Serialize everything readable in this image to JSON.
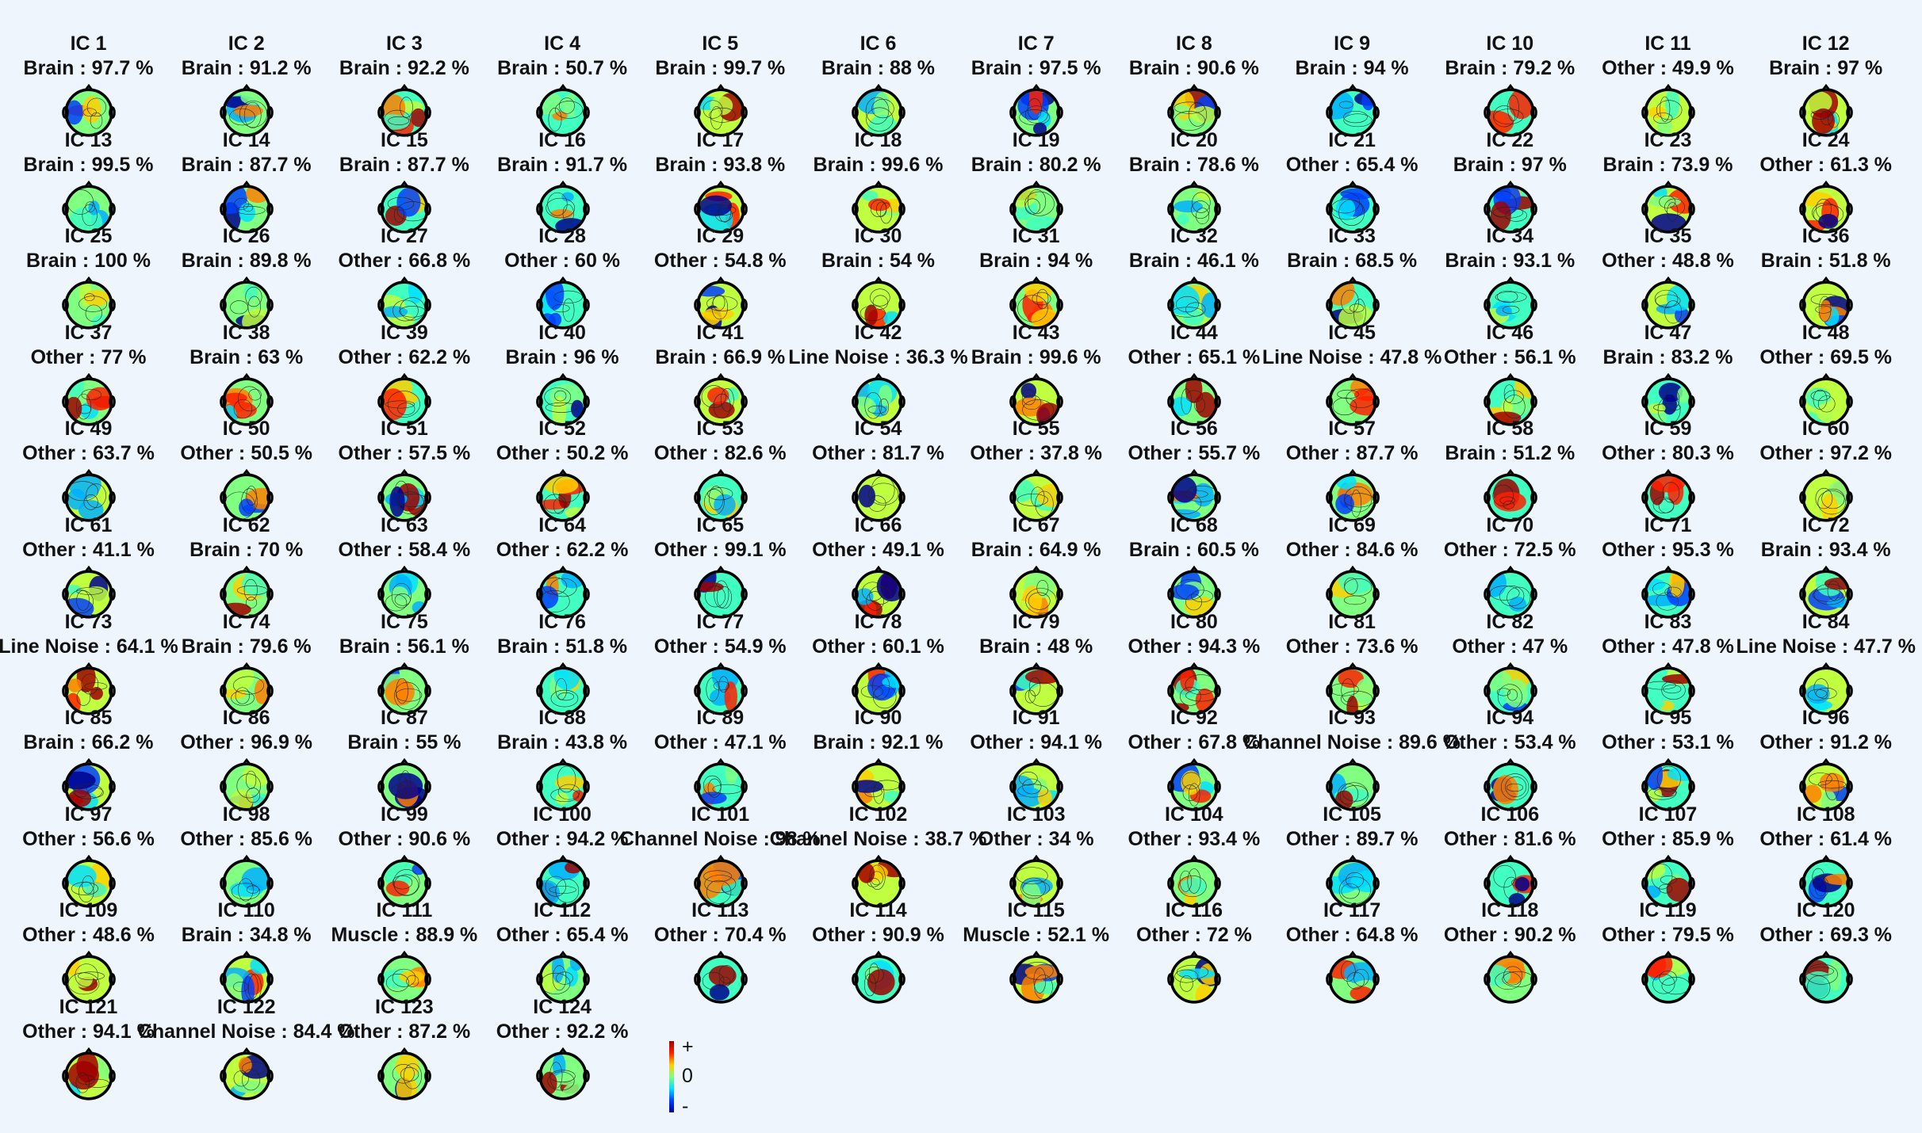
{
  "components": [
    {
      "title": "IC 1",
      "label": "Brain : 97.7 %"
    },
    {
      "title": "IC 2",
      "label": "Brain : 91.2 %"
    },
    {
      "title": "IC 3",
      "label": "Brain : 92.2 %"
    },
    {
      "title": "IC 4",
      "label": "Brain : 50.7 %"
    },
    {
      "title": "IC 5",
      "label": "Brain : 99.7 %"
    },
    {
      "title": "IC 6",
      "label": "Brain : 88 %"
    },
    {
      "title": "IC 7",
      "label": "Brain : 97.5 %"
    },
    {
      "title": "IC 8",
      "label": "Brain : 90.6 %"
    },
    {
      "title": "IC 9",
      "label": "Brain : 94 %"
    },
    {
      "title": "IC 10",
      "label": "Brain : 79.2 %"
    },
    {
      "title": "IC 11",
      "label": "Other : 49.9 %"
    },
    {
      "title": "IC 12",
      "label": "Brain : 97 %"
    },
    {
      "title": "IC 13",
      "label": "Brain : 99.5 %"
    },
    {
      "title": "IC 14",
      "label": "Brain : 87.7 %"
    },
    {
      "title": "IC 15",
      "label": "Brain : 87.7 %"
    },
    {
      "title": "IC 16",
      "label": "Brain : 91.7 %"
    },
    {
      "title": "IC 17",
      "label": "Brain : 93.8 %"
    },
    {
      "title": "IC 18",
      "label": "Brain : 99.6 %"
    },
    {
      "title": "IC 19",
      "label": "Brain : 80.2 %"
    },
    {
      "title": "IC 20",
      "label": "Brain : 78.6 %"
    },
    {
      "title": "IC 21",
      "label": "Other : 65.4 %"
    },
    {
      "title": "IC 22",
      "label": "Brain : 97 %"
    },
    {
      "title": "IC 23",
      "label": "Brain : 73.9 %"
    },
    {
      "title": "IC 24",
      "label": "Other : 61.3 %"
    },
    {
      "title": "IC 25",
      "label": "Brain : 100 %"
    },
    {
      "title": "IC 26",
      "label": "Brain : 89.8 %"
    },
    {
      "title": "IC 27",
      "label": "Other : 66.8 %"
    },
    {
      "title": "IC 28",
      "label": "Other : 60 %"
    },
    {
      "title": "IC 29",
      "label": "Other : 54.8 %"
    },
    {
      "title": "IC 30",
      "label": "Brain : 54 %"
    },
    {
      "title": "IC 31",
      "label": "Brain : 94 %"
    },
    {
      "title": "IC 32",
      "label": "Brain : 46.1 %"
    },
    {
      "title": "IC 33",
      "label": "Brain : 68.5 %"
    },
    {
      "title": "IC 34",
      "label": "Brain : 93.1 %"
    },
    {
      "title": "IC 35",
      "label": "Other : 48.8 %"
    },
    {
      "title": "IC 36",
      "label": "Brain : 51.8 %"
    },
    {
      "title": "IC 37",
      "label": "Other : 77 %"
    },
    {
      "title": "IC 38",
      "label": "Brain : 63 %"
    },
    {
      "title": "IC 39",
      "label": "Other : 62.2 %"
    },
    {
      "title": "IC 40",
      "label": "Brain : 96 %"
    },
    {
      "title": "IC 41",
      "label": "Brain : 66.9 %"
    },
    {
      "title": "IC 42",
      "label": "Line Noise : 36.3 %"
    },
    {
      "title": "IC 43",
      "label": "Brain : 99.6 %"
    },
    {
      "title": "IC 44",
      "label": "Other : 65.1 %"
    },
    {
      "title": "IC 45",
      "label": "Line Noise : 47.8 %"
    },
    {
      "title": "IC 46",
      "label": "Other : 56.1 %"
    },
    {
      "title": "IC 47",
      "label": "Brain : 83.2 %"
    },
    {
      "title": "IC 48",
      "label": "Other : 69.5 %"
    },
    {
      "title": "IC 49",
      "label": "Other : 63.7 %"
    },
    {
      "title": "IC 50",
      "label": "Other : 50.5 %"
    },
    {
      "title": "IC 51",
      "label": "Other : 57.5 %"
    },
    {
      "title": "IC 52",
      "label": "Other : 50.2 %"
    },
    {
      "title": "IC 53",
      "label": "Other : 82.6 %"
    },
    {
      "title": "IC 54",
      "label": "Other : 81.7 %"
    },
    {
      "title": "IC 55",
      "label": "Other : 37.8 %"
    },
    {
      "title": "IC 56",
      "label": "Other : 55.7 %"
    },
    {
      "title": "IC 57",
      "label": "Other : 87.7 %"
    },
    {
      "title": "IC 58",
      "label": "Brain : 51.2 %"
    },
    {
      "title": "IC 59",
      "label": "Other : 80.3 %"
    },
    {
      "title": "IC 60",
      "label": "Other : 97.2 %"
    },
    {
      "title": "IC 61",
      "label": "Other : 41.1 %"
    },
    {
      "title": "IC 62",
      "label": "Brain : 70 %"
    },
    {
      "title": "IC 63",
      "label": "Other : 58.4 %"
    },
    {
      "title": "IC 64",
      "label": "Other : 62.2 %"
    },
    {
      "title": "IC 65",
      "label": "Other : 99.1 %"
    },
    {
      "title": "IC 66",
      "label": "Other : 49.1 %"
    },
    {
      "title": "IC 67",
      "label": "Brain : 64.9 %"
    },
    {
      "title": "IC 68",
      "label": "Brain : 60.5 %"
    },
    {
      "title": "IC 69",
      "label": "Other : 84.6 %"
    },
    {
      "title": "IC 70",
      "label": "Other : 72.5 %"
    },
    {
      "title": "IC 71",
      "label": "Other : 95.3 %"
    },
    {
      "title": "IC 72",
      "label": "Brain : 93.4 %"
    },
    {
      "title": "IC 73",
      "label": "Line Noise : 64.1 %"
    },
    {
      "title": "IC 74",
      "label": "Brain : 79.6 %"
    },
    {
      "title": "IC 75",
      "label": "Brain : 56.1 %"
    },
    {
      "title": "IC 76",
      "label": "Brain : 51.8 %"
    },
    {
      "title": "IC 77",
      "label": "Other : 54.9 %"
    },
    {
      "title": "IC 78",
      "label": "Other : 60.1 %"
    },
    {
      "title": "IC 79",
      "label": "Brain : 48 %"
    },
    {
      "title": "IC 80",
      "label": "Other : 94.3 %"
    },
    {
      "title": "IC 81",
      "label": "Other : 73.6 %"
    },
    {
      "title": "IC 82",
      "label": "Other : 47 %"
    },
    {
      "title": "IC 83",
      "label": "Other : 47.8 %"
    },
    {
      "title": "IC 84",
      "label": "Line Noise : 47.7 %"
    },
    {
      "title": "IC 85",
      "label": "Brain : 66.2 %"
    },
    {
      "title": "IC 86",
      "label": "Other : 96.9 %"
    },
    {
      "title": "IC 87",
      "label": "Brain : 55 %"
    },
    {
      "title": "IC 88",
      "label": "Brain : 43.8 %"
    },
    {
      "title": "IC 89",
      "label": "Other : 47.1 %"
    },
    {
      "title": "IC 90",
      "label": "Brain : 92.1 %"
    },
    {
      "title": "IC 91",
      "label": "Other : 94.1 %"
    },
    {
      "title": "IC 92",
      "label": "Other : 67.8 %"
    },
    {
      "title": "IC 93",
      "label": "Channel Noise : 89.6 %"
    },
    {
      "title": "IC 94",
      "label": "Other : 53.4 %"
    },
    {
      "title": "IC 95",
      "label": "Other : 53.1 %"
    },
    {
      "title": "IC 96",
      "label": "Other : 91.2 %"
    },
    {
      "title": "IC 97",
      "label": "Other : 56.6 %"
    },
    {
      "title": "IC 98",
      "label": "Other : 85.6 %"
    },
    {
      "title": "IC 99",
      "label": "Other : 90.6 %"
    },
    {
      "title": "IC 100",
      "label": "Other : 94.2 %"
    },
    {
      "title": "IC 101",
      "label": "Channel Noise : 98 %"
    },
    {
      "title": "IC 102",
      "label": "Channel Noise : 38.7 %"
    },
    {
      "title": "IC 103",
      "label": "Other : 34 %"
    },
    {
      "title": "IC 104",
      "label": "Other : 93.4 %"
    },
    {
      "title": "IC 105",
      "label": "Other : 89.7 %"
    },
    {
      "title": "IC 106",
      "label": "Other : 81.6 %"
    },
    {
      "title": "IC 107",
      "label": "Other : 85.9 %"
    },
    {
      "title": "IC 108",
      "label": "Other : 61.4 %"
    },
    {
      "title": "IC 109",
      "label": "Other : 48.6 %"
    },
    {
      "title": "IC 110",
      "label": "Brain : 34.8 %"
    },
    {
      "title": "IC 111",
      "label": "Muscle : 88.9 %"
    },
    {
      "title": "IC 112",
      "label": "Other : 65.4 %"
    },
    {
      "title": "IC 113",
      "label": "Other : 70.4 %"
    },
    {
      "title": "IC 114",
      "label": "Other : 90.9 %"
    },
    {
      "title": "IC 115",
      "label": "Muscle : 52.1 %"
    },
    {
      "title": "IC 116",
      "label": "Other : 72 %"
    },
    {
      "title": "IC 117",
      "label": "Other : 64.8 %"
    },
    {
      "title": "IC 118",
      "label": "Other : 90.2 %"
    },
    {
      "title": "IC 119",
      "label": "Other : 79.5 %"
    },
    {
      "title": "IC 120",
      "label": "Other : 69.3 %"
    },
    {
      "title": "IC 121",
      "label": "Other : 94.1 %"
    },
    {
      "title": "IC 122",
      "label": "Channel Noise : 84.4 %"
    },
    {
      "title": "IC 123",
      "label": "Other : 87.2 %"
    },
    {
      "title": "IC 124",
      "label": "Other : 92.2 %"
    }
  ],
  "colorbar": {
    "plus": "+",
    "zero": "0",
    "minus": "-",
    "colors": [
      "#a00000",
      "#ff2000",
      "#ffd000",
      "#80ff80",
      "#00e0ff",
      "#0040ff",
      "#00008f"
    ]
  }
}
